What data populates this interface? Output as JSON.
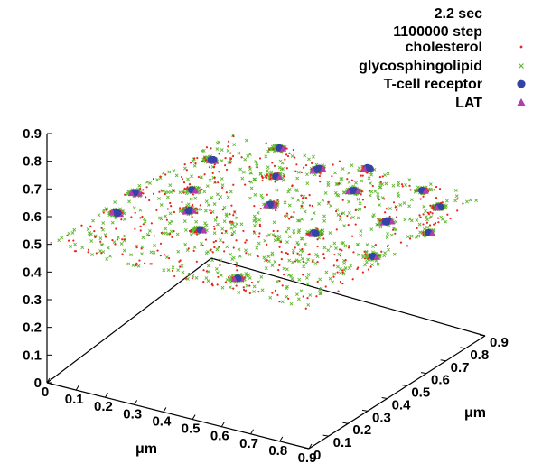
{
  "info": {
    "time": "2.2 sec",
    "step": "1100000 step"
  },
  "colors": {
    "cholesterol": "#e8241c",
    "glycosphingolipid": "#5fb830",
    "tcr": "#3344a6",
    "lat": "#b23cb0"
  },
  "chart_data": {
    "type": "scatter",
    "view": "3d",
    "title": "",
    "xlabel": "μm",
    "ylabel": "μm",
    "zlabel": "",
    "xlim": [
      0,
      0.9
    ],
    "ylim": [
      0,
      0.9
    ],
    "zlim": [
      0,
      0.9
    ],
    "x_ticks": [
      "0",
      "0.1",
      "0.2",
      "0.3",
      "0.4",
      "0.5",
      "0.6",
      "0.7",
      "0.8",
      "0.9"
    ],
    "y_ticks": [
      "0",
      "0.1",
      "0.2",
      "0.3",
      "0.4",
      "0.5",
      "0.6",
      "0.7",
      "0.8",
      "0.9"
    ],
    "z_ticks": [
      "0",
      "0.1",
      "0.2",
      "0.3",
      "0.4",
      "0.5",
      "0.6",
      "0.7",
      "0.8",
      "0.9"
    ],
    "membrane_z": 0.5,
    "legend": {
      "position": "top-right"
    },
    "series": [
      {
        "name": "cholesterol",
        "marker": "dot"
      },
      {
        "name": "glycosphingolipid",
        "marker": "cross"
      },
      {
        "name": "T-cell receptor",
        "marker": "circle"
      },
      {
        "name": "LAT",
        "marker": "triangle"
      }
    ],
    "clusters": [
      {
        "x": 0.2,
        "y": 0.88
      },
      {
        "x": 0.38,
        "y": 0.82
      },
      {
        "x": 0.5,
        "y": 0.9
      },
      {
        "x": 0.72,
        "y": 0.85
      },
      {
        "x": 0.82,
        "y": 0.78
      },
      {
        "x": 0.08,
        "y": 0.72
      },
      {
        "x": 0.3,
        "y": 0.72
      },
      {
        "x": 0.55,
        "y": 0.75
      },
      {
        "x": 0.75,
        "y": 0.62
      },
      {
        "x": 0.15,
        "y": 0.52
      },
      {
        "x": 0.4,
        "y": 0.55
      },
      {
        "x": 0.62,
        "y": 0.45
      },
      {
        "x": 0.32,
        "y": 0.3
      },
      {
        "x": 0.02,
        "y": 0.42
      },
      {
        "x": 0.05,
        "y": 0.28
      },
      {
        "x": 0.85,
        "y": 0.4
      },
      {
        "x": 0.6,
        "y": 0.08
      },
      {
        "x": 0.22,
        "y": 0.4
      },
      {
        "x": 0.9,
        "y": 0.62
      }
    ]
  }
}
